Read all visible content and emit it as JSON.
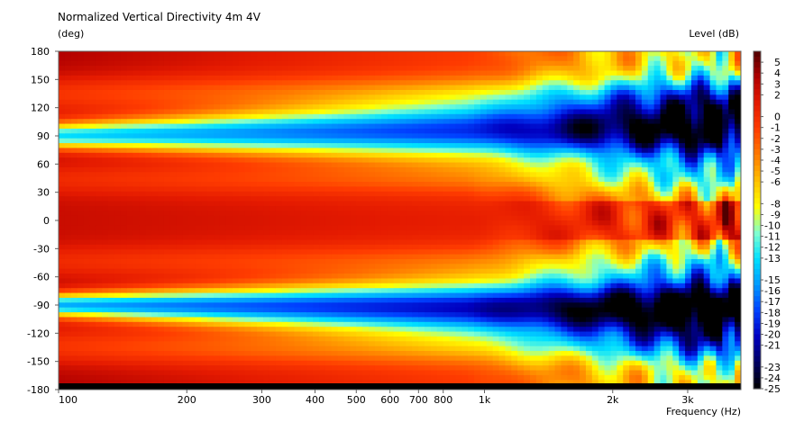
{
  "chart_data": {
    "type": "heatmap",
    "title": "Normalized Vertical Directivity 4m 4V",
    "ylabel": "(deg)",
    "xlabel": "Frequency  (Hz)",
    "colorbar_label": "Level  (dB)",
    "x_scale": "log",
    "xlim": [
      100,
      4000
    ],
    "ylim": [
      -180,
      180
    ],
    "x_ticks": [
      {
        "value": 100,
        "label": "100"
      },
      {
        "value": 200,
        "label": "200"
      },
      {
        "value": 300,
        "label": "300"
      },
      {
        "value": 400,
        "label": "400"
      },
      {
        "value": 500,
        "label": "500"
      },
      {
        "value": 600,
        "label": "600"
      },
      {
        "value": 700,
        "label": "700"
      },
      {
        "value": 800,
        "label": "800"
      },
      {
        "value": 1000,
        "label": "1k"
      },
      {
        "value": 2000,
        "label": "2k"
      },
      {
        "value": 3000,
        "label": "3k"
      }
    ],
    "y_ticks": [
      180,
      150,
      120,
      90,
      60,
      30,
      0,
      -30,
      -60,
      -90,
      -120,
      -150,
      -180
    ],
    "colorbar_range": [
      -25,
      6
    ],
    "colorbar_ticks": [
      5,
      4,
      3,
      2,
      0,
      -1,
      -2,
      -3,
      -4,
      -5,
      -6,
      -8,
      -9,
      -10,
      -11,
      -12,
      -13,
      -15,
      -16,
      -17,
      -18,
      -19,
      -20,
      -21,
      -23,
      -24,
      -25
    ],
    "colormap": [
      "#000000",
      "#000060",
      "#0000c0",
      "#0040ff",
      "#0099ff",
      "#00e0ff",
      "#80ffd0",
      "#ffff00",
      "#ffc000",
      "#ff7a00",
      "#ff3c00",
      "#e41a00",
      "#b00000",
      "#500000"
    ],
    "nulls": [
      {
        "angle": 90,
        "width_deg": 10,
        "f_start": 100,
        "depth_db": -20
      },
      {
        "angle": -90,
        "width_deg": 9,
        "f_start": 100,
        "depth_db": -22
      }
    ],
    "on_axis_level_db": 0
  }
}
